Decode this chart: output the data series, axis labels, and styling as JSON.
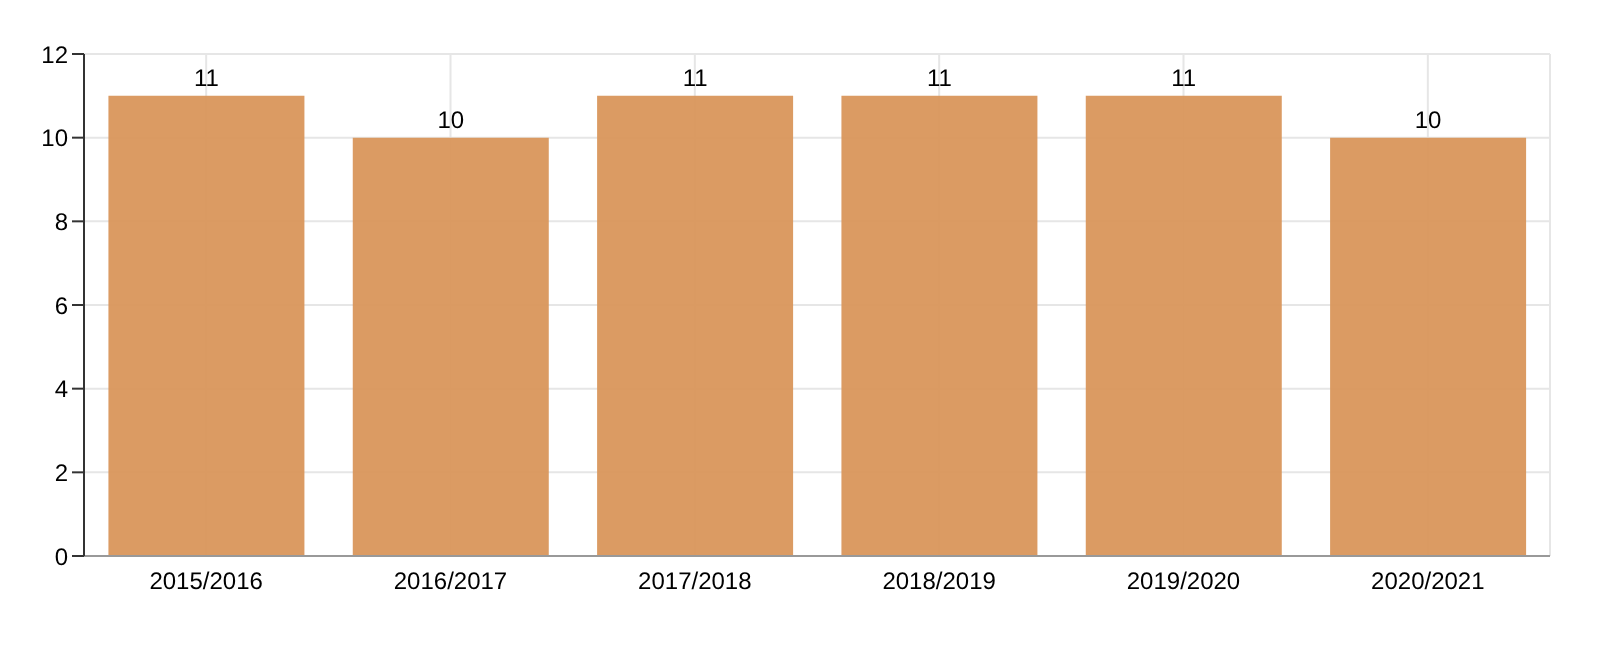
{
  "chart_data": {
    "type": "bar",
    "categories": [
      "2015/2016",
      "2016/2017",
      "2017/2018",
      "2018/2019",
      "2019/2020",
      "2020/2021"
    ],
    "values": [
      11,
      10,
      11,
      11,
      11,
      10
    ],
    "color": "#d9965b",
    "ylim": [
      0,
      12
    ],
    "yticks": [
      0,
      2,
      4,
      6,
      8,
      10,
      12
    ],
    "grid": true,
    "data_labels": true
  }
}
